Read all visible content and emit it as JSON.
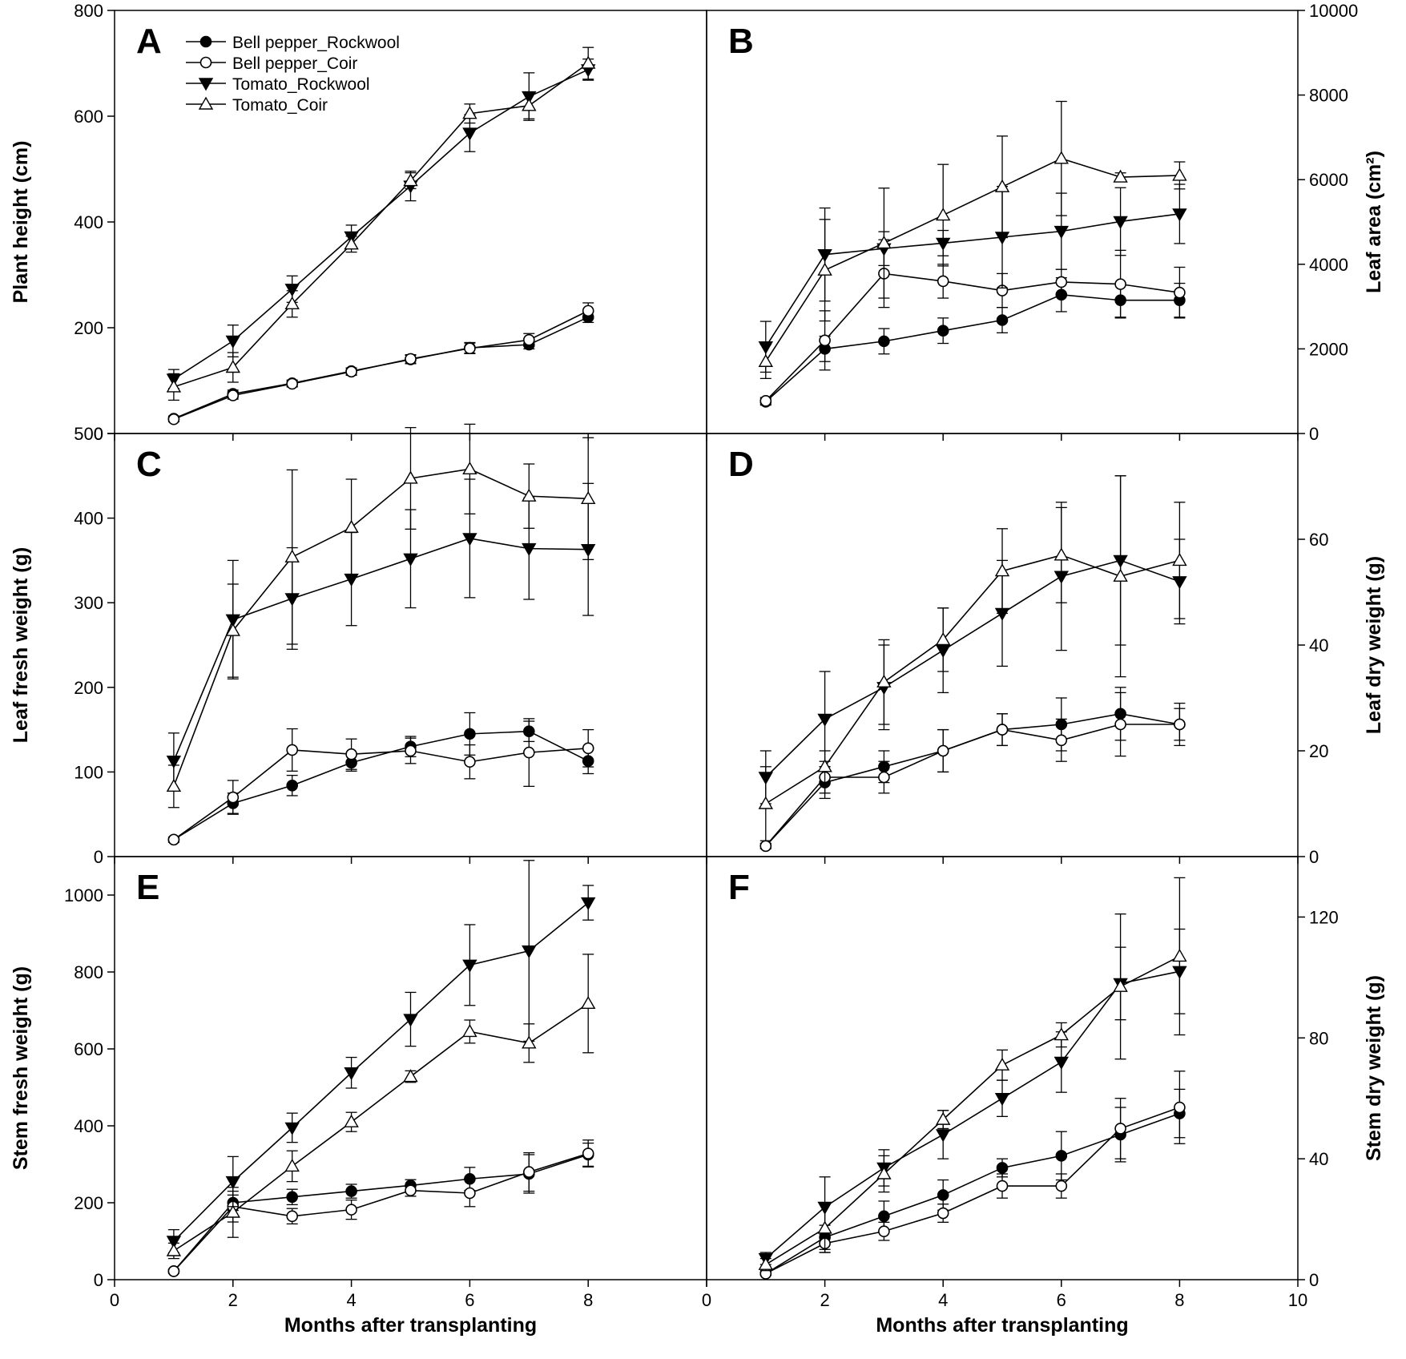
{
  "figure": {
    "x_axis_title": "Months after transplanting",
    "legend": [
      {
        "name": "Bell pepper_Rockwool",
        "marker": "circle-filled"
      },
      {
        "name": "Bell pepper_Coir",
        "marker": "circle-open"
      },
      {
        "name": "Tomato_Rockwool",
        "marker": "triangle-down-filled"
      },
      {
        "name": "Tomato_Coir",
        "marker": "triangle-up-open"
      }
    ]
  },
  "chart_data": [
    {
      "panel": "A",
      "type": "line",
      "ylabel": "Plant height (cm)",
      "ylim": [
        0,
        800
      ],
      "yticks": [
        0,
        200,
        400,
        600,
        800
      ],
      "xlim": [
        0,
        10
      ],
      "xticks": [
        0,
        2,
        4,
        6,
        8
      ],
      "series": [
        {
          "name": "Bell pepper_Rockwool",
          "x": [
            1,
            2,
            3,
            4,
            5,
            6,
            7,
            8
          ],
          "values": [
            28,
            75,
            95,
            118,
            140,
            162,
            168,
            220
          ],
          "errors": [
            5,
            7,
            6,
            6,
            8,
            10,
            8,
            10
          ]
        },
        {
          "name": "Bell pepper_Coir",
          "x": [
            1,
            2,
            3,
            4,
            5,
            6,
            7,
            8
          ],
          "values": [
            27,
            72,
            94,
            117,
            141,
            161,
            177,
            232
          ],
          "errors": [
            5,
            7,
            6,
            7,
            8,
            10,
            12,
            15
          ]
        },
        {
          "name": "Tomato_Rockwool",
          "x": [
            1,
            2,
            3,
            4,
            5,
            6,
            7,
            8
          ],
          "values": [
            103,
            175,
            273,
            372,
            468,
            568,
            637,
            688
          ],
          "errors": [
            18,
            30,
            25,
            22,
            28,
            35,
            45,
            20
          ]
        },
        {
          "name": "Tomato_Coir",
          "x": [
            1,
            2,
            3,
            4,
            5,
            6,
            7,
            8
          ],
          "values": [
            88,
            125,
            245,
            358,
            478,
            605,
            620,
            700
          ],
          "errors": [
            25,
            28,
            25,
            15,
            15,
            18,
            25,
            30
          ]
        }
      ]
    },
    {
      "panel": "B",
      "type": "line",
      "ylabel": "Leaf area (cm²)",
      "ylim": [
        0,
        10000
      ],
      "yticks": [
        0,
        2000,
        4000,
        6000,
        8000,
        10000
      ],
      "xlim": [
        0,
        10
      ],
      "xticks": [
        0,
        2,
        4,
        6,
        8,
        10
      ],
      "series": [
        {
          "name": "Bell pepper_Rockwool",
          "x": [
            1,
            2,
            3,
            4,
            5,
            6,
            7,
            8
          ],
          "values": [
            750,
            2000,
            2180,
            2430,
            2680,
            3280,
            3150,
            3150
          ],
          "errors": [
            80,
            300,
            300,
            300,
            300,
            400,
            400,
            400
          ]
        },
        {
          "name": "Bell pepper_Coir",
          "x": [
            1,
            2,
            3,
            4,
            5,
            6,
            7,
            8
          ],
          "values": [
            770,
            2200,
            3780,
            3600,
            3380,
            3580,
            3530,
            3330
          ],
          "errors": [
            80,
            700,
            800,
            400,
            400,
            300,
            800,
            600
          ]
        },
        {
          "name": "Tomato_Rockwool",
          "x": [
            1,
            2,
            3,
            4,
            5,
            6,
            7,
            8
          ],
          "values": [
            2050,
            4230,
            4370,
            4500,
            4640,
            4780,
            5010,
            5190
          ],
          "errors": [
            600,
            1100,
            400,
            300,
            1200,
            900,
            800,
            700
          ]
        },
        {
          "name": "Tomato_Coir",
          "x": [
            1,
            2,
            3,
            4,
            5,
            6,
            7,
            8
          ],
          "values": [
            1700,
            3860,
            4500,
            5160,
            5830,
            6500,
            6060,
            6100
          ],
          "errors": [
            400,
            1200,
            1300,
            1200,
            1200,
            1350,
            100,
            320
          ]
        }
      ]
    },
    {
      "panel": "C",
      "type": "line",
      "ylabel": "Leaf fresh weight (g)",
      "ylim": [
        0,
        500
      ],
      "yticks": [
        0,
        100,
        200,
        300,
        400,
        500
      ],
      "xlim": [
        0,
        10
      ],
      "xticks": [
        0,
        2,
        4,
        6,
        8
      ],
      "series": [
        {
          "name": "Bell pepper_Rockwool",
          "x": [
            1,
            2,
            3,
            4,
            5,
            6,
            7,
            8
          ],
          "values": [
            20,
            63,
            84,
            111,
            130,
            145,
            148,
            113
          ],
          "errors": [
            3,
            12,
            12,
            10,
            12,
            25,
            12,
            15
          ]
        },
        {
          "name": "Bell pepper_Coir",
          "x": [
            1,
            2,
            3,
            4,
            5,
            6,
            7,
            8
          ],
          "values": [
            20,
            70,
            126,
            121,
            125,
            112,
            123,
            128
          ],
          "errors": [
            3,
            20,
            25,
            18,
            15,
            20,
            40,
            22
          ]
        },
        {
          "name": "Tomato_Rockwool",
          "x": [
            1,
            2,
            3,
            4,
            5,
            6,
            7,
            8
          ],
          "values": [
            113,
            280,
            305,
            328,
            352,
            376,
            364,
            363
          ],
          "errors": [
            33,
            70,
            60,
            55,
            58,
            70,
            60,
            78
          ]
        },
        {
          "name": "Tomato_Coir",
          "x": [
            1,
            2,
            3,
            4,
            5,
            6,
            7,
            8
          ],
          "values": [
            83,
            267,
            354,
            389,
            447,
            458,
            426,
            423
          ],
          "errors": [
            25,
            55,
            103,
            57,
            60,
            53,
            38,
            72
          ]
        }
      ]
    },
    {
      "panel": "D",
      "type": "line",
      "ylabel": "Leaf dry weight (g)",
      "ylim": [
        0,
        80
      ],
      "yticks": [
        0,
        20,
        40,
        60
      ],
      "xlim": [
        0,
        10
      ],
      "xticks": [
        0,
        2,
        4,
        6,
        8,
        10
      ],
      "series": [
        {
          "name": "Bell pepper_Rockwool",
          "x": [
            1,
            2,
            3,
            4,
            5,
            6,
            7,
            8
          ],
          "values": [
            2,
            14,
            17,
            20,
            24,
            25,
            27,
            25
          ],
          "errors": [
            0.5,
            3,
            3,
            4,
            3,
            5,
            5,
            3
          ]
        },
        {
          "name": "Bell pepper_Coir",
          "x": [
            1,
            2,
            3,
            4,
            5,
            6,
            7,
            8
          ],
          "values": [
            2,
            15,
            15,
            20,
            24,
            22,
            25,
            25
          ],
          "errors": [
            0.5,
            3,
            3,
            4,
            3,
            4,
            6,
            4
          ]
        },
        {
          "name": "Tomato_Rockwool",
          "x": [
            1,
            2,
            3,
            4,
            5,
            6,
            7,
            8
          ],
          "values": [
            15,
            26,
            32,
            39,
            46,
            53,
            56,
            52
          ],
          "errors": [
            5,
            9,
            8,
            8,
            10,
            14,
            16,
            8
          ]
        },
        {
          "name": "Tomato_Coir",
          "x": [
            1,
            2,
            3,
            4,
            5,
            6,
            7,
            8
          ],
          "values": [
            10,
            17,
            33,
            41,
            54,
            57,
            53,
            56
          ],
          "errors": [
            7,
            3,
            8,
            6,
            8,
            9,
            19,
            11
          ]
        }
      ]
    },
    {
      "panel": "E",
      "type": "line",
      "ylabel": "Stem fresh weight (g)",
      "ylim": [
        0,
        1100
      ],
      "yticks": [
        0,
        200,
        400,
        600,
        800,
        1000
      ],
      "xlim": [
        0,
        10
      ],
      "xticks": [
        0,
        2,
        4,
        6,
        8
      ],
      "series": [
        {
          "name": "Bell pepper_Rockwool",
          "x": [
            1,
            2,
            3,
            4,
            5,
            6,
            7,
            8
          ],
          "values": [
            22,
            200,
            215,
            230,
            245,
            262,
            275,
            325
          ],
          "errors": [
            5,
            20,
            20,
            18,
            15,
            30,
            50,
            30
          ]
        },
        {
          "name": "Bell pepper_Coir",
          "x": [
            1,
            2,
            3,
            4,
            5,
            6,
            7,
            8
          ],
          "values": [
            22,
            190,
            165,
            182,
            232,
            225,
            280,
            328
          ],
          "errors": [
            5,
            40,
            20,
            25,
            15,
            35,
            50,
            35
          ]
        },
        {
          "name": "Tomato_Rockwool",
          "x": [
            1,
            2,
            3,
            4,
            5,
            6,
            7,
            8
          ],
          "values": [
            100,
            255,
            395,
            538,
            677,
            818,
            855,
            980
          ],
          "errors": [
            30,
            65,
            38,
            40,
            70,
            105,
            235,
            45
          ]
        },
        {
          "name": "Tomato_Coir",
          "x": [
            1,
            2,
            3,
            4,
            5,
            6,
            7,
            8
          ],
          "values": [
            75,
            175,
            295,
            410,
            528,
            645,
            615,
            718
          ],
          "errors": [
            20,
            65,
            40,
            25,
            15,
            30,
            50,
            128
          ]
        }
      ]
    },
    {
      "panel": "F",
      "type": "line",
      "ylabel": "Stem dry weight (g)",
      "ylim": [
        0,
        140
      ],
      "yticks": [
        0,
        40,
        80,
        120
      ],
      "xlim": [
        0,
        10
      ],
      "xticks": [
        0,
        2,
        4,
        6,
        8,
        10
      ],
      "series": [
        {
          "name": "Bell pepper_Rockwool",
          "x": [
            1,
            2,
            3,
            4,
            5,
            6,
            7,
            8
          ],
          "values": [
            2,
            14,
            21,
            28,
            37,
            41,
            48,
            55
          ],
          "errors": [
            0.5,
            4,
            5,
            5,
            3,
            8,
            9,
            8
          ]
        },
        {
          "name": "Bell pepper_Coir",
          "x": [
            1,
            2,
            3,
            4,
            5,
            6,
            7,
            8
          ],
          "values": [
            2,
            12,
            16,
            22,
            31,
            31,
            50,
            57
          ],
          "errors": [
            0.5,
            3,
            3,
            3,
            4,
            4,
            10,
            12
          ]
        },
        {
          "name": "Tomato_Rockwool",
          "x": [
            1,
            2,
            3,
            4,
            5,
            6,
            7,
            8
          ],
          "values": [
            7,
            24,
            37,
            48,
            60,
            72,
            98,
            102
          ],
          "errors": [
            2,
            10,
            6,
            8,
            6,
            10,
            12,
            14
          ]
        },
        {
          "name": "Tomato_Coir",
          "x": [
            1,
            2,
            3,
            4,
            5,
            6,
            7,
            8
          ],
          "values": [
            5,
            17,
            35,
            53,
            71,
            81,
            97,
            107
          ],
          "errors": [
            2,
            8,
            6,
            3,
            5,
            4,
            24,
            26
          ]
        }
      ]
    }
  ]
}
